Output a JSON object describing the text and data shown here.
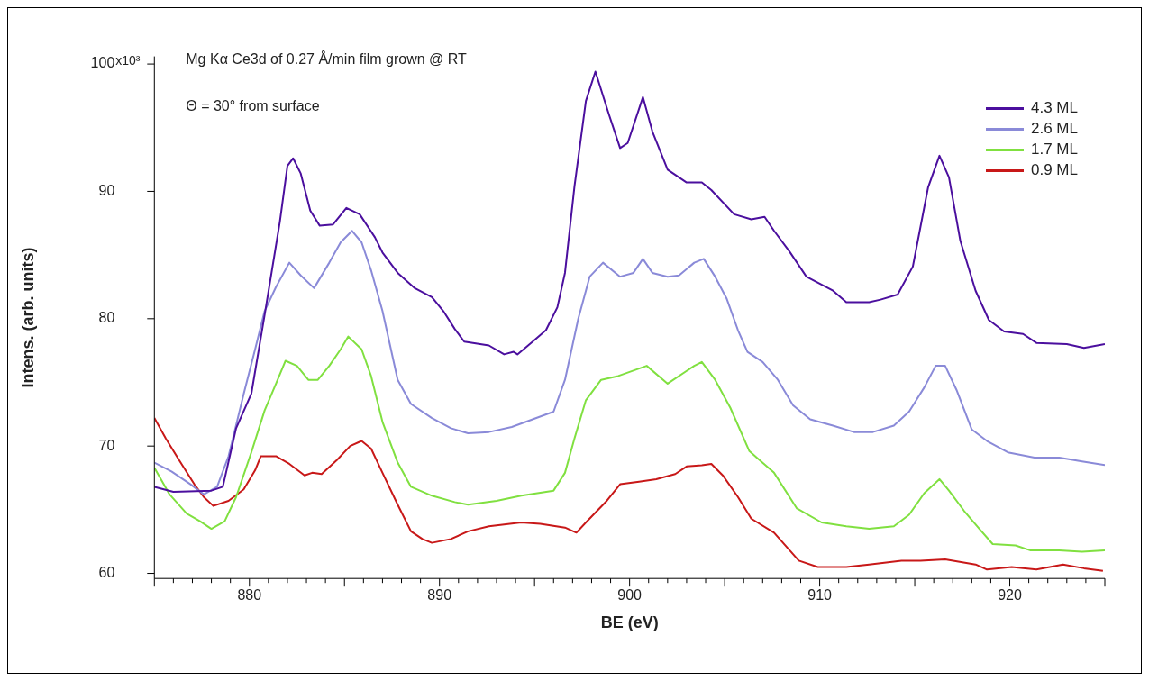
{
  "chart_data": {
    "type": "line",
    "title": "Mg Kα Ce3d of 0.27 Å/min film grown @ RT",
    "subtitle": "Θ = 30° from surface",
    "xlabel": "BE (eV)",
    "ylabel": "Intens. (arb. units)",
    "xlim": [
      875,
      925
    ],
    "ylim": [
      59.6,
      100.6
    ],
    "xticks": [
      {
        "value": 875,
        "label": null
      },
      {
        "value": 876,
        "label": null
      },
      {
        "value": 877,
        "label": null
      },
      {
        "value": 878,
        "label": null
      },
      {
        "value": 879,
        "label": null
      },
      880,
      {
        "value": 881,
        "label": null
      },
      {
        "value": 882,
        "label": null
      },
      {
        "value": 883,
        "label": null
      },
      {
        "value": 884,
        "label": null
      },
      {
        "value": 885,
        "label": null
      },
      {
        "value": 886,
        "label": null
      },
      {
        "value": 887,
        "label": null
      },
      {
        "value": 888,
        "label": null
      },
      {
        "value": 889,
        "label": null
      },
      890,
      {
        "value": 891,
        "label": null
      },
      {
        "value": 892,
        "label": null
      },
      {
        "value": 893,
        "label": null
      },
      {
        "value": 894,
        "label": null
      },
      {
        "value": 895,
        "label": null
      },
      {
        "value": 896,
        "label": null
      },
      {
        "value": 897,
        "label": null
      },
      {
        "value": 898,
        "label": null
      },
      {
        "value": 899,
        "label": null
      },
      900,
      {
        "value": 901,
        "label": null
      },
      {
        "value": 902,
        "label": null
      },
      {
        "value": 903,
        "label": null
      },
      {
        "value": 904,
        "label": null
      },
      {
        "value": 905,
        "label": null
      },
      {
        "value": 906,
        "label": null
      },
      {
        "value": 907,
        "label": null
      },
      {
        "value": 908,
        "label": null
      },
      {
        "value": 909,
        "label": null
      },
      910,
      {
        "value": 911,
        "label": null
      },
      {
        "value": 912,
        "label": null
      },
      {
        "value": 913,
        "label": null
      },
      {
        "value": 914,
        "label": null
      },
      {
        "value": 915,
        "label": null
      },
      {
        "value": 916,
        "label": null
      },
      {
        "value": 917,
        "label": null
      },
      {
        "value": 918,
        "label": null
      },
      {
        "value": 919,
        "label": null
      },
      920,
      {
        "value": 921,
        "label": null
      },
      {
        "value": 922,
        "label": null
      },
      {
        "value": 923,
        "label": null
      },
      {
        "value": 924,
        "label": null
      },
      {
        "value": 925,
        "label": null
      }
    ],
    "yticks": [
      60,
      70,
      80,
      90,
      100
    ],
    "annotations": [
      "x10³"
    ],
    "grid": false,
    "legend": "top right",
    "marker": "none",
    "line_style": "solid",
    "series": [
      {
        "name": "4.3 ML",
        "color": "#4b0f9e",
        "x": [
          875,
          876,
          878,
          878.6,
          879.3,
          880.1,
          880.8,
          881.6,
          882,
          882.3,
          882.7,
          883.2,
          883.7,
          884.4,
          885.1,
          885.8,
          886.6,
          887,
          887.8,
          888.7,
          889.6,
          890.2,
          890.8,
          891.3,
          892.6,
          893.4,
          893.9,
          894.1,
          894.9,
          895.6,
          896.2,
          896.6,
          897.1,
          897.7,
          898.2,
          898.9,
          899.5,
          899.9,
          900.7,
          901.2,
          902,
          903,
          903.8,
          904.3,
          905.5,
          906.4,
          907.1,
          907.6,
          908.4,
          909.3,
          910.7,
          911.4,
          912.6,
          913.2,
          914.1,
          914.9,
          915.7,
          916.3,
          916.8,
          917.4,
          918.2,
          918.9,
          919.7,
          920.7,
          921.4,
          923,
          923.9,
          925
        ],
        "values": [
          66.8,
          66.4,
          66.5,
          66.8,
          71.4,
          74.1,
          80.3,
          87.6,
          92,
          92.6,
          91.4,
          88.5,
          87.3,
          87.4,
          88.7,
          88.2,
          86.4,
          85.2,
          83.6,
          82.4,
          81.7,
          80.6,
          79.2,
          78.2,
          77.9,
          77.2,
          77.4,
          77.2,
          78.2,
          79.1,
          80.9,
          83.6,
          90.4,
          97.1,
          99.4,
          96.1,
          93.4,
          93.8,
          97.4,
          94.7,
          91.7,
          90.7,
          90.7,
          90.1,
          88.2,
          87.8,
          88,
          86.9,
          85.3,
          83.3,
          82.2,
          81.3,
          81.3,
          81.5,
          81.9,
          84.1,
          90.3,
          92.8,
          91.1,
          86.1,
          82.2,
          79.9,
          79,
          78.8,
          78.1,
          78,
          77.7,
          78
        ]
      },
      {
        "name": "2.6 ML",
        "color": "#8a8ad8",
        "x": [
          875,
          875.9,
          876.9,
          877.6,
          878.3,
          878.9,
          879.7,
          880.3,
          880.8,
          881.4,
          882.1,
          882.7,
          883.4,
          884.2,
          884.8,
          885.4,
          885.9,
          886.4,
          887,
          887.8,
          888.5,
          889.6,
          890.6,
          891.5,
          892.6,
          893.8,
          894.9,
          896,
          896.6,
          897.3,
          897.9,
          898.6,
          899.5,
          900.2,
          900.7,
          901.2,
          902,
          902.6,
          903.4,
          903.9,
          904.5,
          905.1,
          905.7,
          906.2,
          907,
          907.8,
          908.6,
          909.5,
          910.7,
          911.8,
          912.8,
          913.9,
          914.7,
          915.5,
          916.1,
          916.6,
          917.2,
          918,
          918.8,
          919.9,
          921.3,
          922.6,
          923.8,
          925
        ],
        "values": [
          68.7,
          68,
          67,
          66.2,
          66.8,
          69.2,
          74.1,
          77.6,
          80.6,
          82.5,
          84.4,
          83.4,
          82.4,
          84.4,
          86,
          86.9,
          86,
          83.8,
          80.6,
          75.2,
          73.3,
          72.2,
          71.4,
          71,
          71.1,
          71.5,
          72.1,
          72.7,
          75.2,
          80,
          83.3,
          84.4,
          83.3,
          83.6,
          84.7,
          83.6,
          83.3,
          83.4,
          84.4,
          84.7,
          83.3,
          81.6,
          79.1,
          77.4,
          76.6,
          75.2,
          73.2,
          72.1,
          71.6,
          71.1,
          71.1,
          71.6,
          72.7,
          74.6,
          76.3,
          76.3,
          74.4,
          71.3,
          70.4,
          69.5,
          69.1,
          69.1,
          68.8,
          68.5
        ]
      },
      {
        "name": "1.7 ML",
        "color": "#80e040",
        "x": [
          875,
          875.8,
          876.7,
          877.4,
          878,
          878.7,
          879.3,
          880.1,
          880.8,
          881.4,
          881.9,
          882.5,
          883.1,
          883.6,
          884.2,
          884.8,
          885.2,
          885.9,
          886.4,
          887,
          887.8,
          888.5,
          889.6,
          890.8,
          891.5,
          893,
          894.3,
          896,
          896.6,
          897.1,
          897.7,
          898.5,
          899.4,
          900.9,
          902,
          903.4,
          903.8,
          904.5,
          905.3,
          906.3,
          907.6,
          908.8,
          910.1,
          911.4,
          912.6,
          913.9,
          914.7,
          915.5,
          916.3,
          916.8,
          917.6,
          918.4,
          919.1,
          920.3,
          921.1,
          922.6,
          923.8,
          925
        ],
        "values": [
          68.3,
          66.2,
          64.7,
          64.1,
          63.5,
          64.1,
          66,
          69.5,
          72.8,
          74.9,
          76.7,
          76.3,
          75.2,
          75.2,
          76.3,
          77.6,
          78.6,
          77.6,
          75.5,
          71.9,
          68.7,
          66.8,
          66.1,
          65.6,
          65.4,
          65.7,
          66.1,
          66.5,
          67.9,
          70.6,
          73.6,
          75.2,
          75.5,
          76.3,
          74.9,
          76.3,
          76.6,
          75.2,
          73,
          69.6,
          67.9,
          65.1,
          64,
          63.7,
          63.5,
          63.7,
          64.6,
          66.3,
          67.4,
          66.5,
          64.9,
          63.5,
          62.3,
          62.2,
          61.8,
          61.8,
          61.7,
          61.8
        ]
      },
      {
        "name": "0.9 ML",
        "color": "#c81818",
        "x": [
          875,
          875.6,
          876.3,
          877.1,
          877.6,
          878.1,
          878.9,
          879.7,
          880.3,
          880.6,
          881.4,
          882.1,
          882.9,
          883.3,
          883.8,
          884.6,
          885.3,
          885.9,
          886.4,
          887,
          887.8,
          888.5,
          889.1,
          889.6,
          890.6,
          891.5,
          892.6,
          894.3,
          895.3,
          896.6,
          897.2,
          897.7,
          898.8,
          899.5,
          900.5,
          901.4,
          902.4,
          903,
          903.8,
          904.3,
          904.9,
          905.7,
          906.4,
          907.6,
          908.9,
          909.9,
          911.4,
          912.6,
          914.3,
          915.3,
          916.6,
          918.2,
          918.8,
          920.1,
          921.4,
          922.8,
          923.9,
          924.9
        ],
        "values": [
          72.2,
          70.6,
          68.9,
          67,
          66,
          65.3,
          65.7,
          66.6,
          68.1,
          69.2,
          69.2,
          68.6,
          67.7,
          67.9,
          67.8,
          68.9,
          70,
          70.4,
          69.8,
          67.9,
          65.4,
          63.3,
          62.7,
          62.4,
          62.7,
          63.3,
          63.7,
          64,
          63.9,
          63.6,
          63.2,
          64,
          65.7,
          67,
          67.2,
          67.4,
          67.8,
          68.4,
          68.5,
          68.6,
          67.7,
          66,
          64.3,
          63.2,
          61,
          60.5,
          60.5,
          60.7,
          61,
          61,
          61.1,
          60.7,
          60.3,
          60.5,
          60.3,
          60.7,
          60.4,
          60.2
        ]
      }
    ]
  }
}
